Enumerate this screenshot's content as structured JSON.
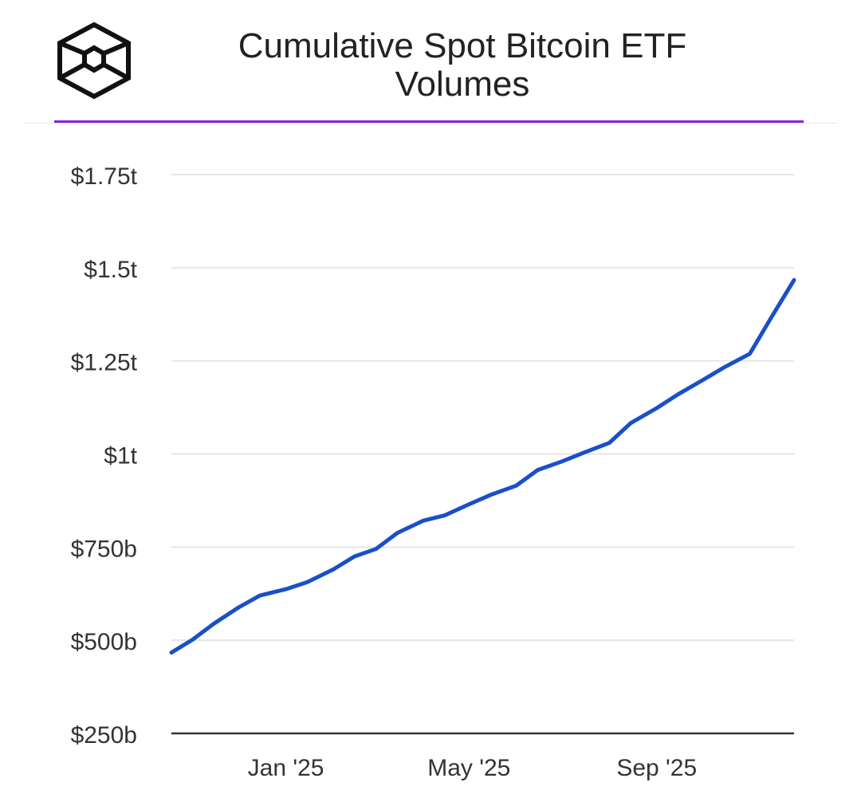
{
  "header": {
    "title_line1": "Cumulative Spot Bitcoin ETF",
    "title_line2": "Volumes",
    "logo_icon": "the-block-cube-logo-icon",
    "accent_color": "#8B1FD8"
  },
  "chart_data": {
    "type": "line",
    "title": "Cumulative Spot Bitcoin ETF Volumes",
    "xlabel": "",
    "ylabel": "",
    "grid": true,
    "legend": "none",
    "line_color": "#1A4FC9",
    "y_ticks": [
      "$250b",
      "$500b",
      "$750b",
      "$1t",
      "$1.25t",
      "$1.5t",
      "$1.75t"
    ],
    "y_tick_values": [
      250,
      500,
      750,
      1000,
      1250,
      1500,
      1750
    ],
    "ylim": [
      250,
      1750
    ],
    "y_unit": "billions USD",
    "x_ticks": [
      "Jan '25",
      "May '25",
      "Sep '25"
    ],
    "x_tick_dates": [
      "2025-01-01",
      "2025-05-01",
      "2025-09-01"
    ],
    "xlim": [
      "2024-10-18",
      "2025-11-30"
    ],
    "series": [
      {
        "x": [
          "2024-10-18",
          "2024-11-01",
          "2024-11-15",
          "2024-12-01",
          "2024-12-15",
          "2025-01-01",
          "2025-01-15",
          "2025-02-01",
          "2025-02-15",
          "2025-03-01",
          "2025-03-15",
          "2025-04-01",
          "2025-04-15",
          "2025-05-01",
          "2025-05-15",
          "2025-06-01",
          "2025-06-15",
          "2025-07-01",
          "2025-07-15",
          "2025-08-01",
          "2025-08-15",
          "2025-09-01",
          "2025-09-15",
          "2025-10-01",
          "2025-10-15",
          "2025-11-01",
          "2025-11-15",
          "2025-11-30"
        ],
        "values": [
          467,
          502,
          545,
          588,
          620,
          637,
          656,
          690,
          725,
          745,
          788,
          821,
          835,
          865,
          890,
          915,
          957,
          980,
          1003,
          1030,
          1083,
          1123,
          1160,
          1198,
          1232,
          1269,
          1366,
          1467
        ]
      }
    ]
  }
}
